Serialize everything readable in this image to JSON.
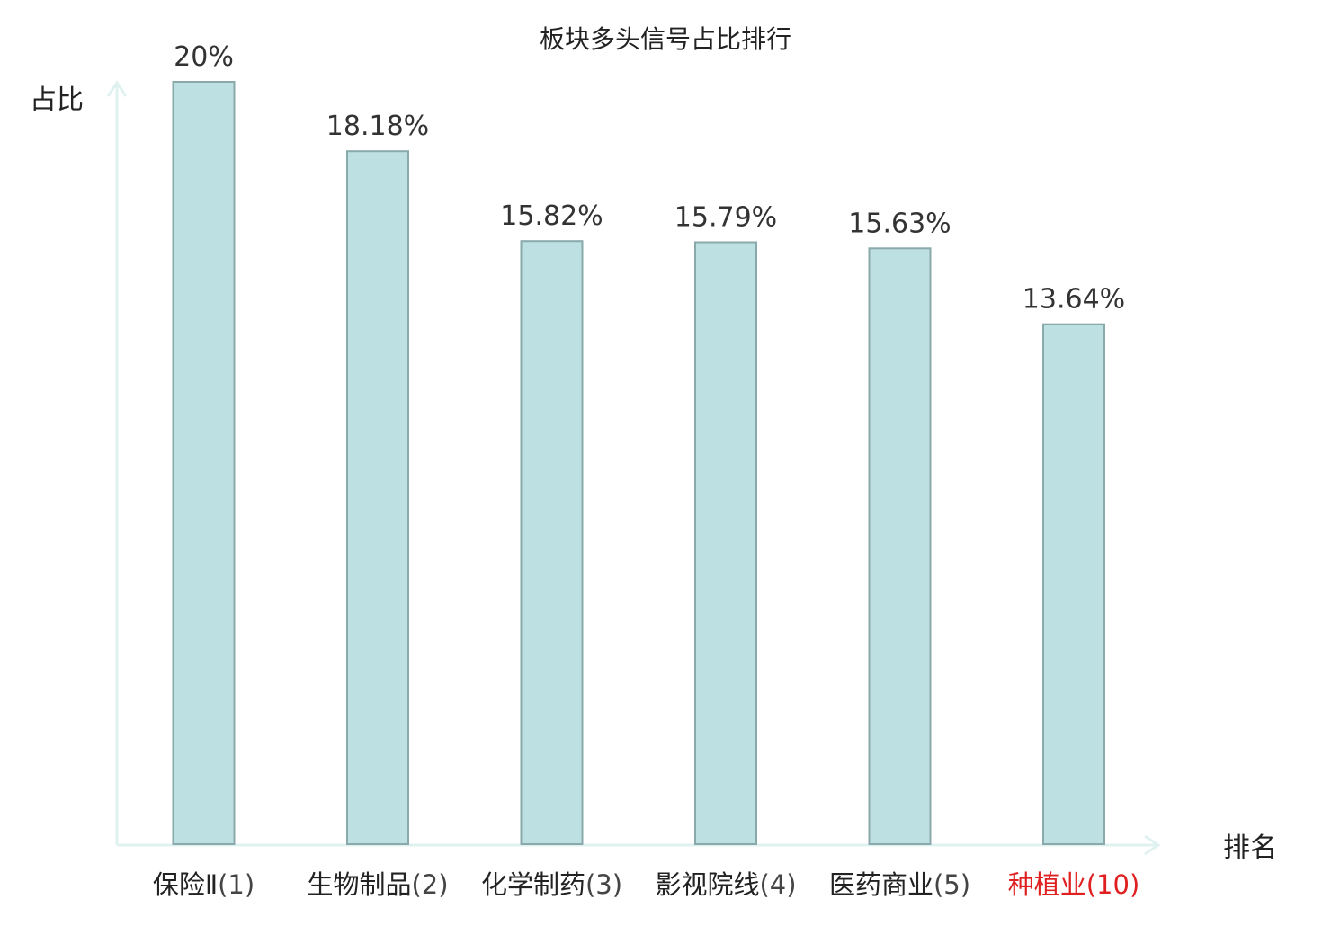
{
  "chart_data": {
    "type": "bar",
    "title": "板块多头信号占比排行",
    "xlabel": "排名",
    "ylabel": "占比",
    "ylim": [
      0,
      20
    ],
    "grid": false,
    "legend": "none",
    "colors": {
      "bar_fill": "#bde0e2",
      "bar_stroke": "#8aa9ab",
      "axis": "#e0f2f0",
      "text": "#222222",
      "value_text": "#333333",
      "highlight": "#e02020"
    },
    "categories": [
      {
        "name": "保险Ⅱ",
        "rank": "(1)",
        "highlight": false
      },
      {
        "name": "生物制品",
        "rank": "(2)",
        "highlight": false
      },
      {
        "name": "化学制药",
        "rank": "(3)",
        "highlight": false
      },
      {
        "name": "影视院线",
        "rank": "(4)",
        "highlight": false
      },
      {
        "name": "医药商业",
        "rank": "(5)",
        "highlight": false
      },
      {
        "name": "种植业",
        "rank": "(10)",
        "highlight": true
      }
    ],
    "values": [
      20,
      18.18,
      15.82,
      15.79,
      15.63,
      13.64
    ],
    "value_labels": [
      "20%",
      "18.18%",
      "15.82%",
      "15.79%",
      "15.63%",
      "13.64%"
    ]
  }
}
